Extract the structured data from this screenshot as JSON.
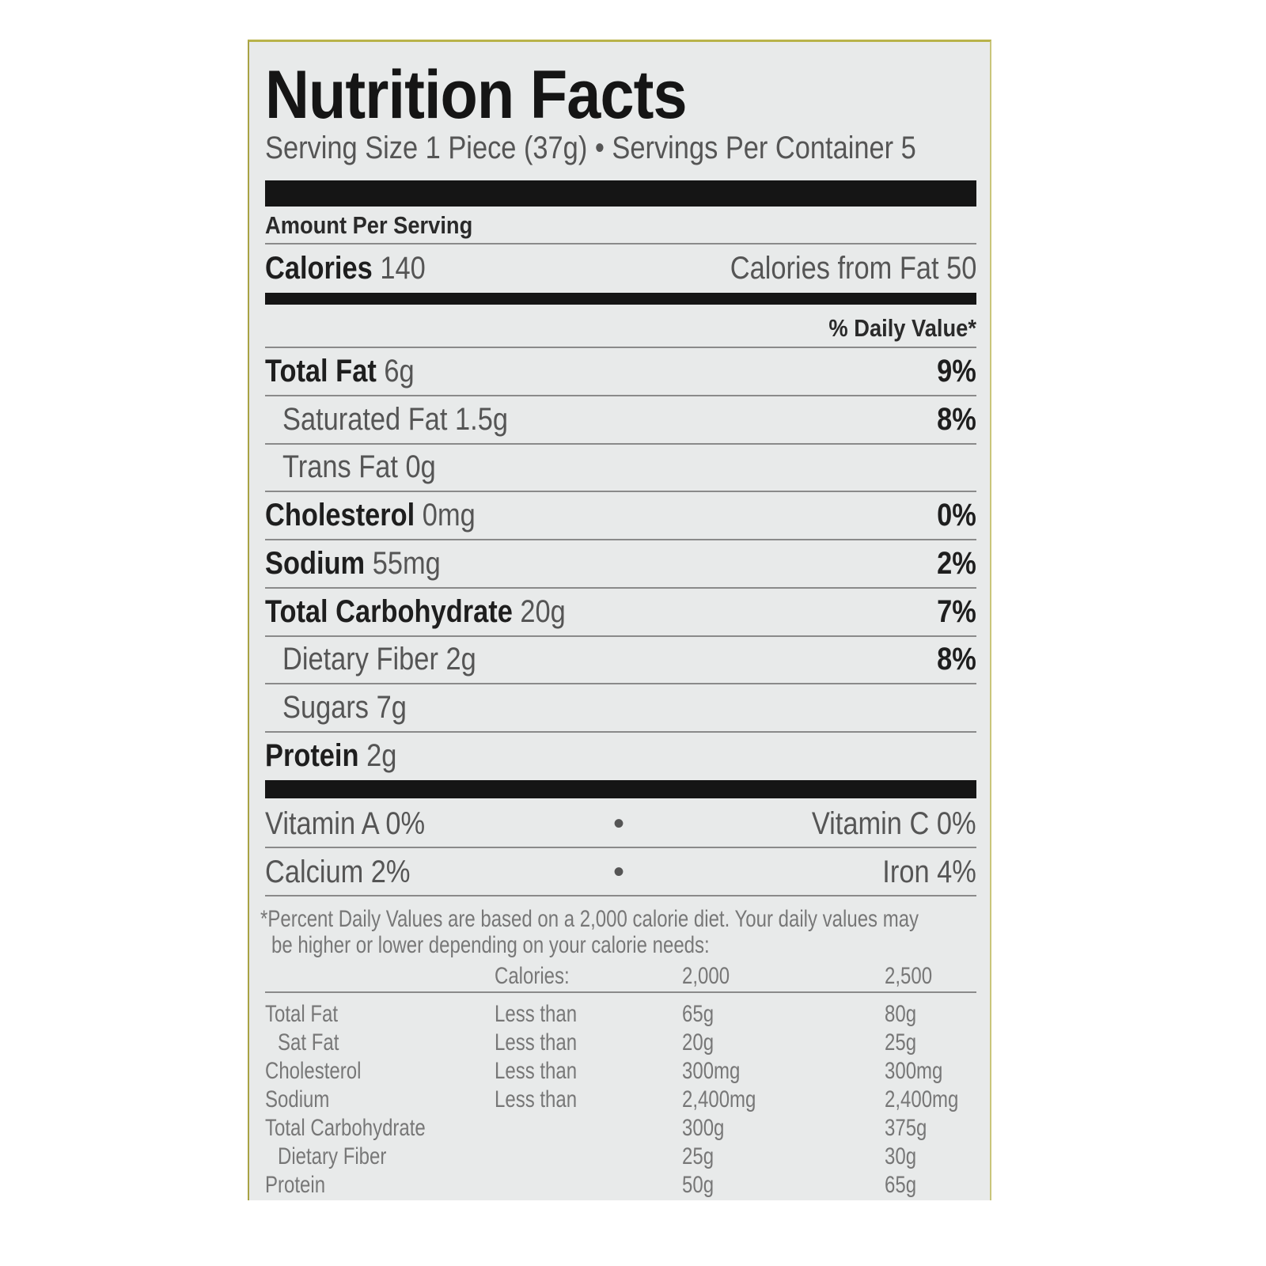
{
  "title": "Nutrition Facts",
  "serving": "Serving Size 1 Piece (37g) • Servings Per Container 5",
  "amount_per_serving": "Amount Per Serving",
  "calories": {
    "label": "Calories",
    "value": "140",
    "from_fat": "Calories from Fat 50"
  },
  "daily_value_header": "% Daily Value*",
  "nutrients": [
    {
      "name": "Total Fat",
      "amount": "6g",
      "dv": "9%",
      "bold": true,
      "indent": false
    },
    {
      "name": "Saturated Fat",
      "amount": "1.5g",
      "dv": "8%",
      "bold": false,
      "indent": true
    },
    {
      "name": "Trans Fat",
      "amount": "0g",
      "dv": "",
      "bold": false,
      "indent": true
    },
    {
      "name": "Cholesterol",
      "amount": "0mg",
      "dv": "0%",
      "bold": true,
      "indent": false
    },
    {
      "name": "Sodium",
      "amount": "55mg",
      "dv": "2%",
      "bold": true,
      "indent": false
    },
    {
      "name": "Total Carbohydrate",
      "amount": "20g",
      "dv": "7%",
      "bold": true,
      "indent": false
    },
    {
      "name": "Dietary Fiber",
      "amount": "2g",
      "dv": "8%",
      "bold": false,
      "indent": true
    },
    {
      "name": "Sugars",
      "amount": "7g",
      "dv": "",
      "bold": false,
      "indent": true
    },
    {
      "name": "Protein",
      "amount": "2g",
      "dv": "",
      "bold": true,
      "indent": false
    }
  ],
  "vitamins": [
    {
      "left": "Vitamin A 0%",
      "sep": "•",
      "right": "Vitamin C 0%"
    },
    {
      "left": "Calcium 2%",
      "sep": "•",
      "right": "Iron 4%"
    }
  ],
  "footnote": [
    "*Percent Daily Values are based on a 2,000 calorie diet. Your daily values may",
    "be higher or lower depending on your calorie needs:"
  ],
  "dv_table": {
    "header": [
      "",
      "Calories:",
      "2,000",
      "2,500"
    ],
    "rows": [
      [
        "Total Fat",
        "Less than",
        "65g",
        "80g"
      ],
      [
        " Sat Fat",
        "Less than",
        "20g",
        "25g"
      ],
      [
        "Cholesterol",
        "Less than",
        "300mg",
        "300mg"
      ],
      [
        "Sodium",
        "Less than",
        "2,400mg",
        "2,400mg"
      ],
      [
        "Total Carbohydrate",
        "",
        "300g",
        "375g"
      ],
      [
        " Dietary Fiber",
        "",
        "25g",
        "30g"
      ],
      [
        "Protein",
        "",
        "50g",
        "65g"
      ]
    ]
  }
}
